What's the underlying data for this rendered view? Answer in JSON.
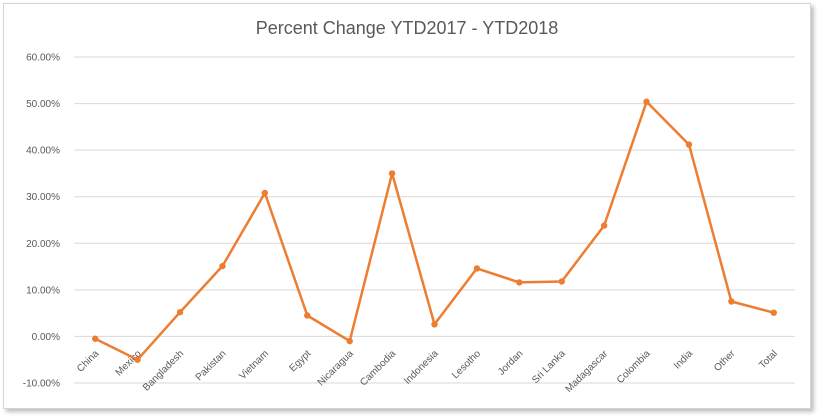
{
  "chart_data": {
    "type": "line",
    "title": "Percent Change YTD2017 - YTD2018",
    "xlabel": "",
    "ylabel": "",
    "ylim": [
      -10,
      60
    ],
    "yticks": [
      "60.00%",
      "50.00%",
      "40.00%",
      "30.00%",
      "20.00%",
      "10.00%",
      "0.00%",
      "-10.00%"
    ],
    "grid": true,
    "color": "#ED7D31",
    "categories": [
      "China",
      "Mexico",
      "Bangladesh",
      "Pakistan",
      "Vietnam",
      "Egypt",
      "Nicaragua",
      "Cambodia",
      "Indonesia",
      "Lesotho",
      "Jordan",
      "Sri Lanka",
      "Madagascar",
      "Colombia",
      "India",
      "Other",
      "Total"
    ],
    "series": [
      {
        "values": [
          -0.5,
          -5.0,
          5.2,
          15.1,
          30.8,
          4.5,
          -1.0,
          35.0,
          2.6,
          14.6,
          11.6,
          11.8,
          23.8,
          50.4,
          41.2,
          7.5,
          5.1
        ]
      }
    ]
  }
}
